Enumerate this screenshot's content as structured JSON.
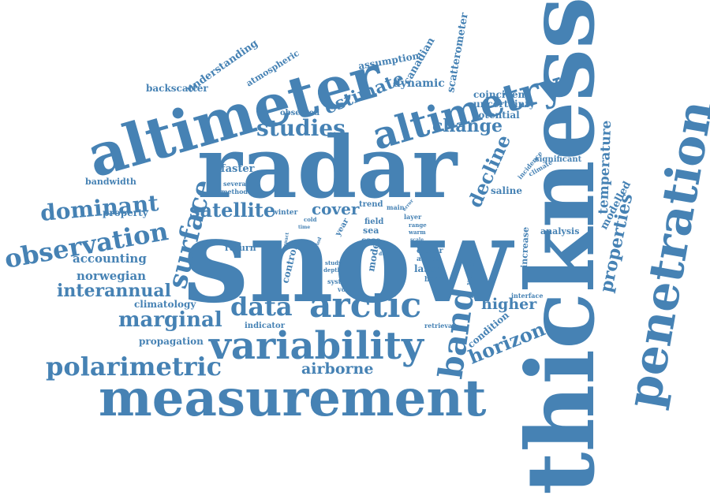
{
  "color": "#4682b4",
  "words": {
    "snow": "snow",
    "thickness": "thickness",
    "radar": "radar",
    "altimeter": "altimeter",
    "penetration": "penetration",
    "measurement": "measurement",
    "variability": "variability",
    "altimetry": "altimetry",
    "arctic": "arctic",
    "band": "band",
    "observation": "observation",
    "polarimetric": "polarimetric",
    "surface": "surface",
    "dominant": "dominant",
    "data": "data",
    "studies": "studies",
    "satellite": "satellite",
    "interannual": "interannual",
    "marginal": "marginal",
    "change": "change",
    "estimate": "estimate",
    "decline": "decline",
    "horizon": "horizon",
    "properties": "properties",
    "temperature": "temperature",
    "airborne": "airborne",
    "cover": "cover",
    "higher": "higher",
    "norwegian": "norwegian",
    "accounting": "accounting",
    "modelled": "modelled",
    "scatterometer": "scatterometer",
    "canadian": "canadian",
    "understanding": "understanding",
    "atmospheric": "atmospheric",
    "backscatter": "backscatter",
    "assumption": "assumption",
    "dynamic": "dynamic",
    "coincident": "coincident",
    "uncertainty": "uncertainty",
    "potential": "potential",
    "observed": "observed",
    "faster": "faster",
    "bandwidth": "bandwidth",
    "several": "several",
    "method": "method",
    "property": "property",
    "climatology": "climatology",
    "propagation": "propagation",
    "indicator": "indicator",
    "return": "return",
    "control": "control",
    "trend": "trend",
    "winter": "winter",
    "cold": "cold",
    "time": "time",
    "year": "year",
    "field": "field",
    "sea": "sea",
    "case": "case",
    "mode": "mode",
    "laser": "laser",
    "closer": "closer",
    "asiras": "asiras",
    "based": "based",
    "system": "system",
    "volume": "volume",
    "retrieval": "retrieval",
    "condition": "condition",
    "interface": "interface",
    "analysis": "analysis",
    "increase": "increase",
    "variation": "variation",
    "saline": "saline",
    "significant": "significant",
    "incidence": "incidence",
    "climate": "climate",
    "main": "main",
    "error": "error",
    "layer": "layer",
    "range": "range",
    "warm": "warm",
    "scale": "scale",
    "shift": "shift",
    "dual": "dual",
    "study": "study",
    "depth": "depth",
    "period": "period",
    "impact": "impact"
  }
}
